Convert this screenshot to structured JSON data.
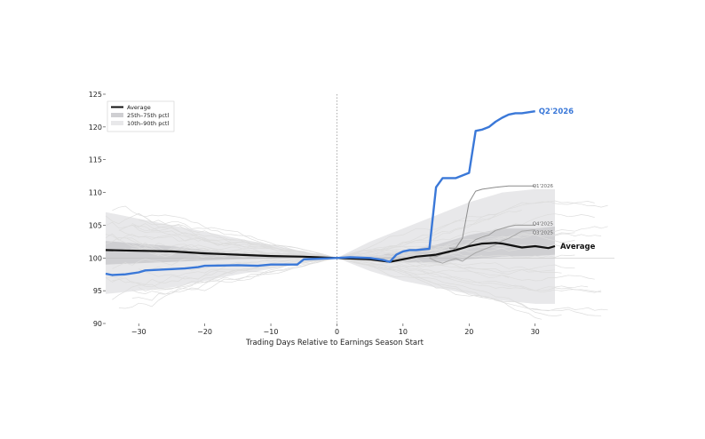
{
  "chart_data": {
    "type": "line",
    "title": "",
    "xlabel": "Trading Days Relative to Earnings Season Start",
    "ylabel": "",
    "xlim": [
      -35,
      42
    ],
    "ylim": [
      90,
      125
    ],
    "x_ticks": [
      -30,
      -20,
      -10,
      0,
      10,
      20,
      30
    ],
    "y_ticks": [
      90,
      95,
      100,
      105,
      110,
      115,
      120,
      125
    ],
    "reference_lines": {
      "vertical_x": 0,
      "horizontal_y": 100
    },
    "grid": false,
    "legend": {
      "placement": "top-left",
      "entries": [
        "Average",
        "25th–75th pctl",
        "10th–90th pctl"
      ]
    },
    "colors": {
      "average": "#111111",
      "q2_2026": "#3a78d8",
      "q1_2026": "#8c8c8c",
      "q4_2025": "#9a9a9a",
      "q3_2025": "#a8a8a8",
      "background_lines": "#dddddd",
      "band_inner": "#cfcfd2",
      "band_outer": "#e8e8ea"
    },
    "bands": {
      "x": [
        -35,
        -30,
        -25,
        -20,
        -15,
        -10,
        -5,
        0,
        5,
        10,
        15,
        20,
        25,
        30,
        33
      ],
      "p10": [
        94.5,
        95,
        95.5,
        96.5,
        97.5,
        98.3,
        99.2,
        100,
        98,
        96.5,
        95.5,
        94.5,
        93.5,
        93,
        93
      ],
      "p25": [
        99,
        99.2,
        99.4,
        99.6,
        99.8,
        99.9,
        100,
        100,
        99.5,
        99.3,
        99.3,
        99.8,
        100.2,
        100.3,
        100.5
      ],
      "p75": [
        102.6,
        102.2,
        101.8,
        101.2,
        100.8,
        100.5,
        100.3,
        100,
        100.2,
        101,
        102,
        103.5,
        104.5,
        104.5,
        104.8
      ],
      "p90": [
        107,
        106,
        105,
        104,
        103,
        102,
        101,
        100,
        102.5,
        104.5,
        106.5,
        108.5,
        110,
        110.5,
        110.5
      ]
    },
    "series": [
      {
        "name": "Average",
        "x": [
          -35,
          -30,
          -25,
          -20,
          -15,
          -10,
          -5,
          0,
          5,
          8,
          10,
          12,
          15,
          18,
          20,
          22,
          24,
          25,
          26,
          28,
          30,
          32,
          33
        ],
        "y": [
          101.2,
          101.1,
          101,
          100.7,
          100.5,
          100.3,
          100.2,
          100,
          99.8,
          99.4,
          99.8,
          100.2,
          100.5,
          101.2,
          101.8,
          102.2,
          102.3,
          102.2,
          102,
          101.6,
          101.8,
          101.5,
          101.8
        ]
      },
      {
        "name": "Q2'2026",
        "x": [
          -35,
          -34,
          -32,
          -30,
          -29,
          -27,
          -25,
          -23,
          -21,
          -20,
          -15,
          -12,
          -10,
          -6,
          -5,
          0,
          2,
          5,
          7,
          8,
          9,
          10,
          11,
          12,
          13,
          14,
          15,
          16,
          18,
          20,
          21,
          22,
          23,
          24,
          25,
          26,
          27,
          28,
          30
        ],
        "y": [
          97.6,
          97.4,
          97.5,
          97.8,
          98.1,
          98.2,
          98.3,
          98.4,
          98.6,
          98.8,
          98.9,
          98.8,
          99,
          99,
          99.8,
          100,
          100.1,
          100,
          99.7,
          99.4,
          100.5,
          101,
          101.2,
          101.2,
          101.3,
          101.4,
          110.8,
          112.2,
          112.2,
          113,
          119.4,
          119.6,
          120,
          120.8,
          121.4,
          121.9,
          122.1,
          122.1,
          122.4
        ]
      },
      {
        "name": "Q1'2026",
        "x": [
          17,
          18,
          19,
          20,
          21,
          22,
          24,
          26,
          28,
          30
        ],
        "y": [
          101.5,
          101.5,
          103,
          108.5,
          110.2,
          110.5,
          110.8,
          111,
          111,
          111
        ]
      },
      {
        "name": "Q4'2025",
        "x": [
          14,
          15,
          16,
          17,
          18,
          19,
          20,
          21,
          22,
          23,
          24,
          25,
          26,
          27,
          28,
          29,
          30
        ],
        "y": [
          100.2,
          100.2,
          100.6,
          100.8,
          101.5,
          101.5,
          102,
          102.8,
          103.2,
          103.5,
          104.2,
          104.5,
          104.8,
          105,
          105,
          105,
          105
        ]
      },
      {
        "name": "Q3'2025",
        "x": [
          14,
          15,
          16,
          17,
          18,
          19,
          20,
          21,
          22,
          23,
          24,
          25,
          26,
          28,
          30
        ],
        "y": [
          100,
          99.5,
          99.2,
          99.6,
          99.9,
          99.5,
          100.2,
          100.8,
          101.2,
          101.6,
          102,
          102.6,
          103,
          104.1,
          104.3
        ]
      }
    ],
    "end_labels": [
      {
        "series": "Q2'2026",
        "text": "Q2'2026"
      },
      {
        "series": "Q1'2026",
        "text": "Q1'2026"
      },
      {
        "series": "Q4'2025",
        "text": "Q4'2025"
      },
      {
        "series": "Q3'2025",
        "text": "Q3'2025"
      },
      {
        "series": "Average",
        "text": "Average"
      }
    ],
    "background_series_count": 28
  }
}
